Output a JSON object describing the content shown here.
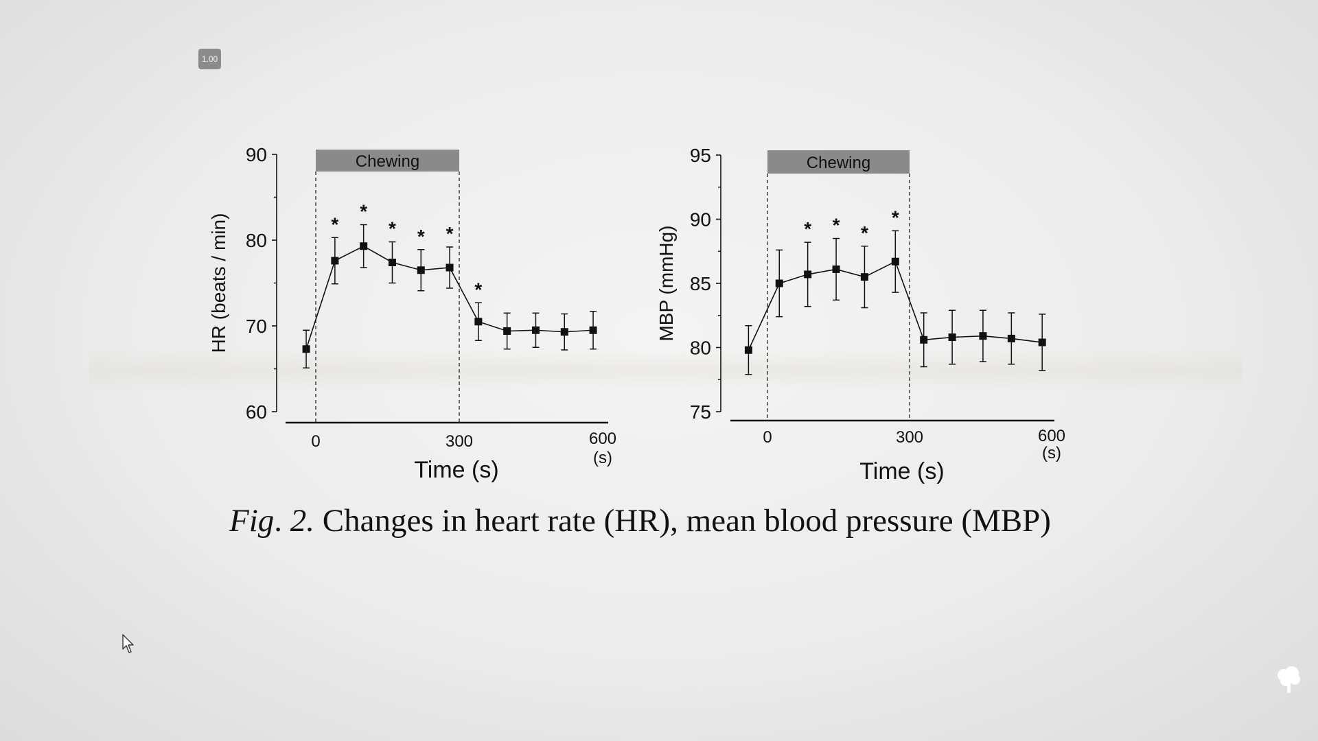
{
  "zoom_badge": "1.00",
  "caption": {
    "fig_label": "Fig",
    "fig_sep": ".",
    "fig_number": "2.",
    "text": "Changes in heart rate (HR), mean blood pressure (MBP)"
  },
  "icons": {
    "cursor": "mouse-pointer-icon",
    "corner": "tree-icon"
  },
  "chart_data": [
    {
      "type": "line",
      "ylabel": "HR (beats / min)",
      "xlabel": "Time (s)",
      "x_unit": "(s)",
      "ylim": [
        60,
        90
      ],
      "yticks": [
        60,
        70,
        80,
        90
      ],
      "xticks": [
        0,
        300,
        600
      ],
      "xlim": [
        -60,
        600
      ],
      "band": {
        "label": "Chewing",
        "x_start": 0,
        "x_end": 300
      },
      "series": [
        {
          "x": [
            -20,
            40,
            100,
            160,
            220,
            280,
            340,
            400,
            460,
            520,
            580
          ],
          "values": [
            67.3,
            77.6,
            79.3,
            77.4,
            76.5,
            76.8,
            70.5,
            69.4,
            69.5,
            69.3,
            69.5
          ],
          "error": [
            2.2,
            2.7,
            2.5,
            2.4,
            2.4,
            2.4,
            2.2,
            2.1,
            2.0,
            2.1,
            2.2
          ],
          "significant": [
            false,
            true,
            true,
            true,
            true,
            true,
            true,
            false,
            false,
            false,
            false
          ]
        }
      ],
      "significance_marker": "*"
    },
    {
      "type": "line",
      "ylabel": "MBP (mmHg)",
      "xlabel": "Time (s)",
      "x_unit": "(s)",
      "ylim": [
        75,
        95
      ],
      "yticks": [
        75,
        80,
        85,
        90,
        95
      ],
      "xticks": [
        0,
        300,
        600
      ],
      "xlim": [
        -75,
        600
      ],
      "band": {
        "label": "Chewing",
        "x_start": 0,
        "x_end": 300
      },
      "series": [
        {
          "x": [
            -40,
            25,
            85,
            145,
            205,
            270,
            330,
            390,
            455,
            515,
            580
          ],
          "values": [
            79.8,
            85.0,
            85.7,
            86.1,
            85.5,
            86.7,
            80.6,
            80.8,
            80.9,
            80.7,
            80.4
          ],
          "error": [
            1.9,
            2.6,
            2.5,
            2.4,
            2.4,
            2.4,
            2.1,
            2.1,
            2.0,
            2.0,
            2.2
          ],
          "significant": [
            false,
            false,
            true,
            true,
            true,
            true,
            false,
            false,
            false,
            false,
            false
          ]
        }
      ],
      "significance_marker": "*"
    }
  ]
}
